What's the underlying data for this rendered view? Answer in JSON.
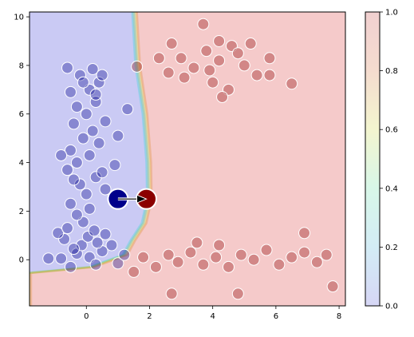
{
  "chart_data": {
    "type": "scatter",
    "title": "",
    "xlabel": "",
    "ylabel": "",
    "xlim": [
      -1.8,
      8.2
    ],
    "ylim": [
      -1.9,
      10.2
    ],
    "x_ticks": [
      0,
      2,
      4,
      6,
      8
    ],
    "y_ticks": [
      0,
      2,
      4,
      6,
      8,
      10
    ],
    "x_tick_labels": [
      "0",
      "2",
      "4",
      "6",
      "8"
    ],
    "y_tick_labels": [
      "0",
      "2",
      "4",
      "6",
      "8",
      "10"
    ],
    "grid": false,
    "decision_regions": {
      "class_0_color": "#3b3bd6",
      "class_1_color": "#d93b3b",
      "boundary_x_at_y": [
        [
          -1.9,
          -1.8
        ],
        [
          -0.55,
          -1.8
        ],
        [
          -0.3,
          0.2
        ],
        [
          0.2,
          1.25
        ],
        [
          0.8,
          1.5
        ],
        [
          1.5,
          1.85
        ],
        [
          2.5,
          2.02
        ],
        [
          4.0,
          2.0
        ],
        [
          6.0,
          1.88
        ],
        [
          8.0,
          1.65
        ],
        [
          10.2,
          1.55
        ]
      ]
    },
    "series": [
      {
        "color": "#00008b",
        "points": [
          [
            -1.2,
            0.05
          ],
          [
            -0.8,
            0.05
          ],
          [
            -0.5,
            -0.3
          ],
          [
            -0.3,
            0.25
          ],
          [
            -0.15,
            0.6
          ],
          [
            0.1,
            0.1
          ],
          [
            0.3,
            -0.2
          ],
          [
            0.5,
            0.35
          ],
          [
            0.8,
            0.6
          ],
          [
            1.0,
            -0.15
          ],
          [
            1.2,
            0.2
          ],
          [
            -0.7,
            0.85
          ],
          [
            -0.4,
            0.45
          ],
          [
            0.05,
            0.95
          ],
          [
            0.35,
            0.7
          ],
          [
            -0.9,
            1.1
          ],
          [
            -0.6,
            1.3
          ],
          [
            -0.1,
            1.55
          ],
          [
            0.25,
            1.2
          ],
          [
            0.6,
            1.05
          ],
          [
            -0.3,
            1.85
          ],
          [
            0.1,
            2.1
          ],
          [
            -0.5,
            2.3
          ],
          [
            0.0,
            2.7
          ],
          [
            -0.2,
            3.1
          ],
          [
            0.3,
            3.4
          ],
          [
            -0.6,
            3.7
          ],
          [
            0.5,
            3.6
          ],
          [
            -0.3,
            4.0
          ],
          [
            0.1,
            4.3
          ],
          [
            -0.5,
            4.5
          ],
          [
            0.4,
            4.8
          ],
          [
            -0.1,
            5.0
          ],
          [
            0.2,
            5.3
          ],
          [
            -0.4,
            5.6
          ],
          [
            0.6,
            5.7
          ],
          [
            0.0,
            6.0
          ],
          [
            -0.3,
            6.3
          ],
          [
            0.3,
            6.5
          ],
          [
            -0.5,
            6.9
          ],
          [
            0.1,
            7.0
          ],
          [
            0.4,
            7.3
          ],
          [
            -0.2,
            7.6
          ],
          [
            0.2,
            7.85
          ],
          [
            -0.6,
            7.9
          ],
          [
            0.5,
            7.6
          ],
          [
            1.3,
            6.2
          ],
          [
            1.0,
            5.1
          ],
          [
            -0.8,
            4.3
          ],
          [
            0.9,
            3.9
          ],
          [
            -0.4,
            3.3
          ],
          [
            0.6,
            2.9
          ],
          [
            -0.1,
            7.3
          ],
          [
            0.3,
            6.8
          ]
        ]
      },
      {
        "color": "#8b0000",
        "points": [
          [
            1.5,
            -0.5
          ],
          [
            1.8,
            0.1
          ],
          [
            2.2,
            -0.3
          ],
          [
            2.6,
            0.2
          ],
          [
            2.9,
            -0.1
          ],
          [
            3.3,
            0.3
          ],
          [
            3.7,
            -0.2
          ],
          [
            4.1,
            0.1
          ],
          [
            4.5,
            -0.3
          ],
          [
            4.9,
            0.2
          ],
          [
            5.3,
            0.0
          ],
          [
            5.7,
            0.4
          ],
          [
            6.1,
            -0.2
          ],
          [
            6.5,
            0.1
          ],
          [
            6.9,
            0.3
          ],
          [
            7.3,
            -0.1
          ],
          [
            7.6,
            0.2
          ],
          [
            2.7,
            -1.4
          ],
          [
            4.8,
            -1.4
          ],
          [
            7.8,
            -1.1
          ],
          [
            3.5,
            0.7
          ],
          [
            4.2,
            0.6
          ],
          [
            6.9,
            1.1
          ],
          [
            1.6,
            7.95
          ],
          [
            2.6,
            7.7
          ],
          [
            3.0,
            8.3
          ],
          [
            3.4,
            7.9
          ],
          [
            3.8,
            8.6
          ],
          [
            4.2,
            8.2
          ],
          [
            4.6,
            8.8
          ],
          [
            5.0,
            8.0
          ],
          [
            5.4,
            7.6
          ],
          [
            5.8,
            8.3
          ],
          [
            4.0,
            7.3
          ],
          [
            4.5,
            7.0
          ],
          [
            3.1,
            7.5
          ],
          [
            2.7,
            8.9
          ],
          [
            3.7,
            9.7
          ],
          [
            4.2,
            9.0
          ],
          [
            4.8,
            8.5
          ],
          [
            5.2,
            8.9
          ],
          [
            4.3,
            6.7
          ],
          [
            3.9,
            7.8
          ],
          [
            6.5,
            7.25
          ],
          [
            5.8,
            7.6
          ],
          [
            2.3,
            8.3
          ]
        ]
      }
    ],
    "arrow": {
      "from": [
        1.0,
        2.5
      ],
      "to": [
        1.9,
        2.5
      ],
      "from_color": "#00008b",
      "to_color": "#8b0000"
    },
    "colorbar": {
      "min": 0.0,
      "max": 1.0,
      "ticks": [
        0.0,
        0.2,
        0.4,
        0.6,
        0.8,
        1.0
      ],
      "tick_labels": [
        "0.0",
        "0.2",
        "0.4",
        "0.6",
        "0.8",
        "1.0"
      ]
    }
  }
}
